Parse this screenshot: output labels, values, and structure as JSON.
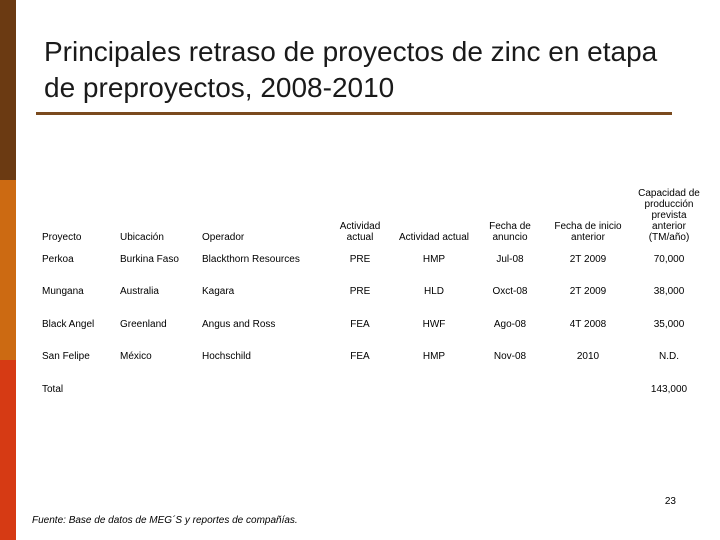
{
  "title": "Principales retraso de proyectos de zinc en etapa de preproyectos, 2008-2010",
  "table": {
    "headers": [
      "Proyecto",
      "Ubicación",
      "Operador",
      "Actividad actual",
      "Actividad actual",
      "Fecha de anuncio",
      "Fecha de inicio anterior",
      "Capacidad de producción prevista anterior (TM/año)"
    ],
    "rows": [
      [
        "Perkoa",
        "Burkina Faso",
        "Blackthorn Resources",
        "PRE",
        "HMP",
        "Jul-08",
        "2T 2009",
        "70,000"
      ],
      [
        "Mungana",
        "Australia",
        "Kagara",
        "PRE",
        "HLD",
        "Oxct-08",
        "2T 2009",
        "38,000"
      ],
      [
        "Black Angel",
        "Greenland",
        "Angus and Ross",
        "FEA",
        "HWF",
        "Ago-08",
        "4T 2008",
        "35,000"
      ],
      [
        "San Felipe",
        "México",
        "Hochschild",
        "FEA",
        "HMP",
        "Nov-08",
        "2010",
        "N.D."
      ],
      [
        "Total",
        "",
        "",
        "",
        "",
        "",
        "",
        "143,000"
      ]
    ]
  },
  "page_number": "23",
  "source": "Fuente: Base de datos de MEG´S y reportes de compañías."
}
